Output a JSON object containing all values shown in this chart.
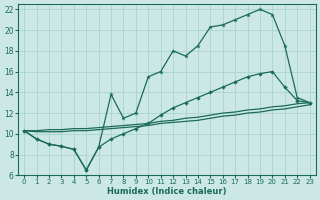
{
  "xlabel": "Humidex (Indice chaleur)",
  "bg_color": "#cce8e4",
  "grid_color": "#aad4cc",
  "line_color": "#1a6b5a",
  "xlim": [
    -0.5,
    23.5
  ],
  "ylim": [
    6,
    22.5
  ],
  "xticks": [
    0,
    1,
    2,
    3,
    4,
    5,
    6,
    7,
    8,
    9,
    10,
    11,
    12,
    13,
    14,
    15,
    16,
    17,
    18,
    19,
    20,
    21,
    22,
    23
  ],
  "yticks": [
    6,
    8,
    10,
    12,
    14,
    16,
    18,
    20,
    22
  ],
  "line1_x": [
    0,
    1,
    2,
    3,
    4,
    5,
    6,
    7,
    8,
    9,
    10,
    11,
    12,
    13,
    14,
    15,
    16,
    17,
    18,
    19,
    20,
    21,
    22,
    23
  ],
  "line1_y": [
    10.3,
    9.5,
    9.0,
    8.8,
    8.5,
    6.5,
    8.7,
    13.8,
    11.5,
    12.0,
    15.5,
    16.0,
    18.0,
    17.5,
    18.5,
    20.3,
    20.5,
    21.0,
    21.5,
    22.0,
    21.5,
    18.5,
    13.5,
    13.0
  ],
  "line2_x": [
    0,
    1,
    2,
    3,
    4,
    5,
    6,
    7,
    8,
    9,
    10,
    11,
    12,
    13,
    14,
    15,
    16,
    17,
    18,
    19,
    20,
    21,
    22,
    23
  ],
  "line2_y": [
    10.3,
    9.5,
    9.0,
    8.8,
    8.5,
    6.5,
    8.7,
    9.5,
    10.0,
    10.5,
    11.0,
    11.8,
    12.5,
    13.0,
    13.5,
    14.0,
    14.5,
    15.0,
    15.5,
    15.8,
    16.0,
    14.5,
    13.2,
    13.0
  ],
  "line3_x": [
    0,
    1,
    2,
    3,
    4,
    5,
    6,
    7,
    8,
    9,
    10,
    11,
    12,
    13,
    14,
    15,
    16,
    17,
    18,
    19,
    20,
    21,
    22,
    23
  ],
  "line3_y": [
    10.3,
    10.3,
    10.4,
    10.4,
    10.5,
    10.5,
    10.6,
    10.7,
    10.8,
    10.9,
    11.0,
    11.2,
    11.3,
    11.5,
    11.6,
    11.8,
    12.0,
    12.1,
    12.3,
    12.4,
    12.6,
    12.7,
    12.9,
    13.0
  ],
  "line4_x": [
    0,
    1,
    2,
    3,
    4,
    5,
    6,
    7,
    8,
    9,
    10,
    11,
    12,
    13,
    14,
    15,
    16,
    17,
    18,
    19,
    20,
    21,
    22,
    23
  ],
  "line4_y": [
    10.3,
    10.2,
    10.2,
    10.2,
    10.3,
    10.3,
    10.4,
    10.5,
    10.6,
    10.7,
    10.8,
    11.0,
    11.1,
    11.2,
    11.3,
    11.5,
    11.7,
    11.8,
    12.0,
    12.1,
    12.3,
    12.4,
    12.6,
    12.8
  ]
}
